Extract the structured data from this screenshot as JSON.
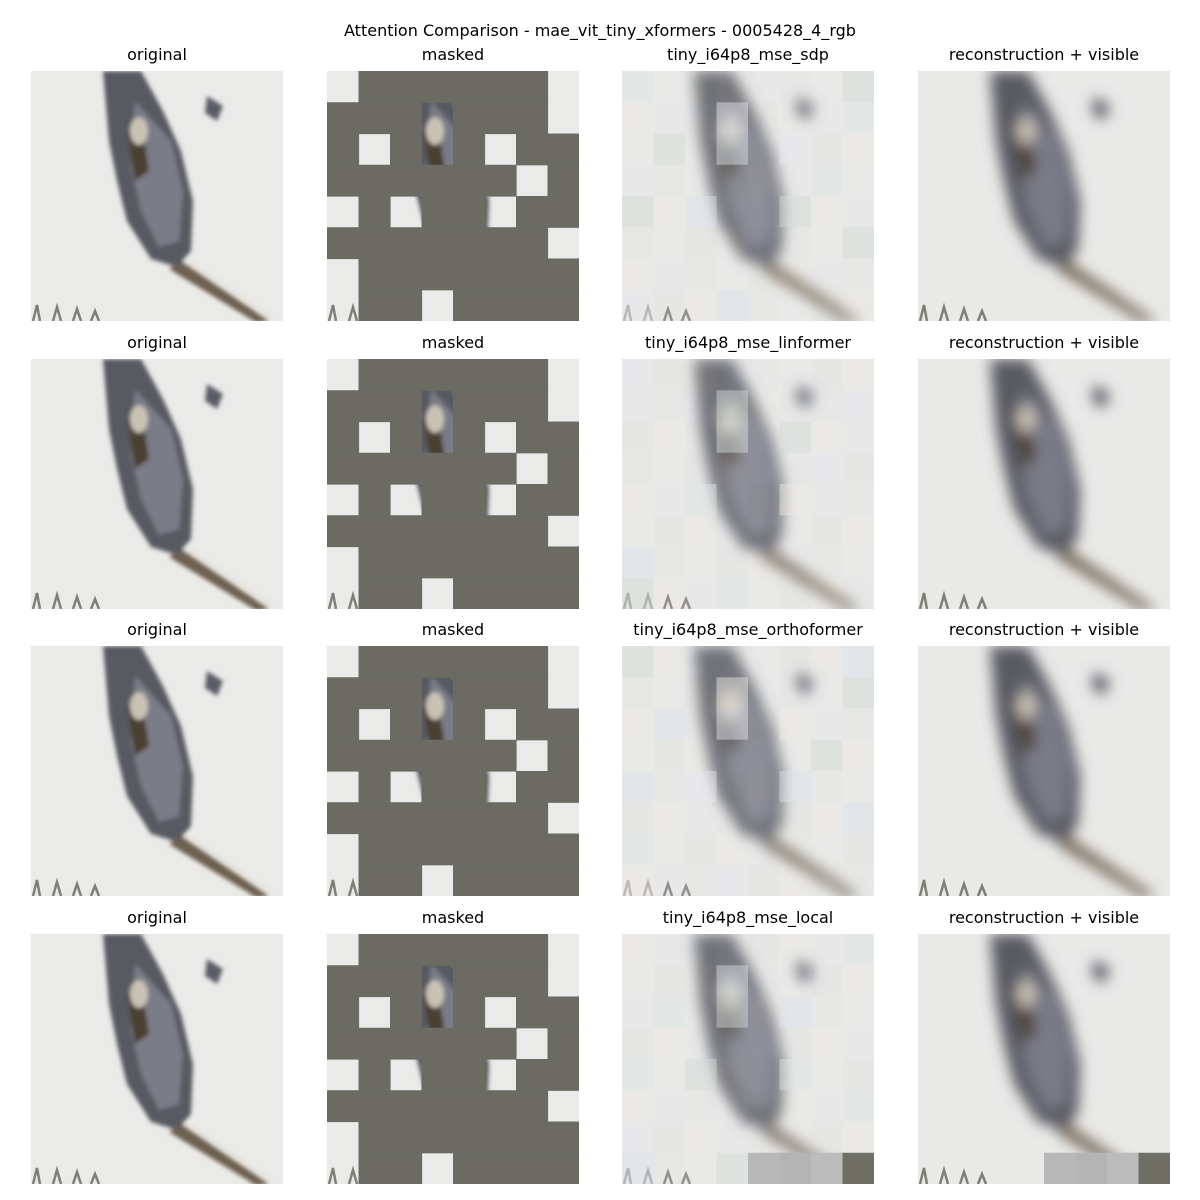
{
  "figure": {
    "title": "Attention Comparison - mae_vit_tiny_xformers - 0005428_4_rgb"
  },
  "rows": [
    {
      "titles": [
        "original",
        "masked",
        "tiny_i64p8_mse_sdp",
        "reconstruction + visible"
      ]
    },
    {
      "titles": [
        "original",
        "masked",
        "tiny_i64p8_mse_linformer",
        "reconstruction + visible"
      ]
    },
    {
      "titles": [
        "original",
        "masked",
        "tiny_i64p8_mse_orthoformer",
        "reconstruction + visible"
      ]
    },
    {
      "titles": [
        "original",
        "masked",
        "tiny_i64p8_mse_local",
        "reconstruction + visible"
      ]
    }
  ],
  "image": {
    "grid": 8,
    "visible_patches": [
      [
        0,
        0
      ],
      [
        0,
        7
      ],
      [
        1,
        3
      ],
      [
        1,
        7
      ],
      [
        2,
        1
      ],
      [
        2,
        3
      ],
      [
        2,
        5
      ],
      [
        3,
        6
      ],
      [
        4,
        0
      ],
      [
        4,
        2
      ],
      [
        4,
        5
      ],
      [
        5,
        7
      ],
      [
        6,
        0
      ],
      [
        7,
        0
      ],
      [
        7,
        3
      ]
    ],
    "mask_color": "#6b6b64",
    "snow_color": "#e9e9e7"
  }
}
